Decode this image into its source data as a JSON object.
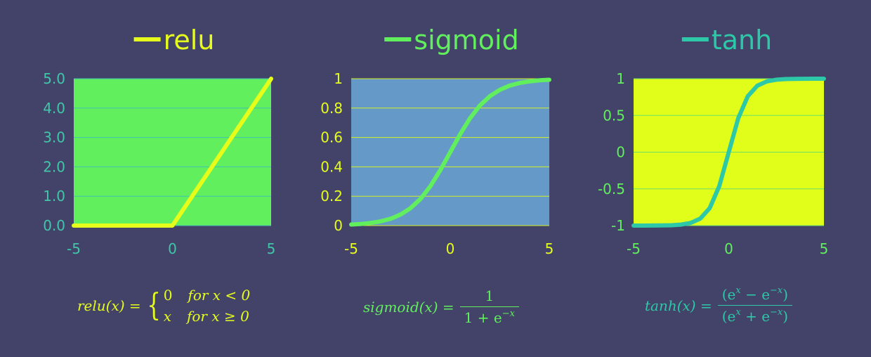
{
  "chart_data": [
    {
      "type": "line",
      "function": "relu",
      "legend": "relu",
      "legend_position": "top",
      "colors": {
        "line": "#e6fd1b",
        "plot_bg": "#61ef5e",
        "ticks": "#40c6a8",
        "grid": "#43c2ad",
        "title": "#e6fd1b"
      },
      "x": [
        -5,
        0,
        1,
        2,
        3,
        4,
        5
      ],
      "y": [
        0,
        0,
        1,
        2,
        3,
        4,
        5
      ],
      "xlim": [
        -5,
        5
      ],
      "ylim": [
        0,
        5
      ],
      "xticks": [
        "-5",
        "0",
        "5"
      ],
      "yticks": [
        "0.0",
        "1.0",
        "2.0",
        "3.0",
        "4.0",
        "5.0"
      ],
      "grid": true,
      "formula": {
        "lhs": "relu(x) = ",
        "case1": "0",
        "case1_cond": "for x < 0",
        "case2": "x",
        "case2_cond": "for x ≥ 0"
      }
    },
    {
      "type": "line",
      "function": "sigmoid",
      "legend": "sigmoid",
      "legend_position": "top",
      "colors": {
        "line": "#61ef5e",
        "plot_bg": "#6599c8",
        "ticks": "#e6fd1b",
        "grid": "#d4ef20",
        "title": "#61ef5e"
      },
      "x": [
        -5,
        -4.5,
        -4,
        -3.5,
        -3,
        -2.5,
        -2,
        -1.5,
        -1,
        -0.5,
        0,
        0.5,
        1,
        1.5,
        2,
        2.5,
        3,
        3.5,
        4,
        4.5,
        5
      ],
      "y": [
        0.007,
        0.011,
        0.018,
        0.029,
        0.047,
        0.076,
        0.119,
        0.182,
        0.269,
        0.378,
        0.5,
        0.622,
        0.731,
        0.818,
        0.881,
        0.924,
        0.953,
        0.971,
        0.982,
        0.989,
        0.993
      ],
      "xlim": [
        -5,
        5
      ],
      "ylim": [
        0,
        1
      ],
      "xticks": [
        "-5",
        "0",
        "5"
      ],
      "yticks": [
        "0",
        "0.2",
        "0.4",
        "0.6",
        "0.8",
        "1"
      ],
      "grid": true,
      "formula": {
        "lhs": "sigmoid(x) = ",
        "num": "1",
        "den": "1 + e",
        "den_sup": "−x"
      }
    },
    {
      "type": "line",
      "function": "tanh",
      "legend": "tanh",
      "legend_position": "top",
      "colors": {
        "line": "#2dc8a8",
        "plot_bg": "#e1fd1a",
        "ticks": "#61ef5e",
        "grid": "#6ee06a",
        "title": "#2dc8a8"
      },
      "x": [
        -5,
        -4.5,
        -4,
        -3.5,
        -3,
        -2.5,
        -2,
        -1.5,
        -1,
        -0.5,
        0,
        0.5,
        1,
        1.5,
        2,
        2.5,
        3,
        3.5,
        4,
        4.5,
        5
      ],
      "y": [
        -1.0,
        -1.0,
        -0.999,
        -0.998,
        -0.995,
        -0.987,
        -0.964,
        -0.905,
        -0.762,
        -0.462,
        0,
        0.462,
        0.762,
        0.905,
        0.964,
        0.987,
        0.995,
        0.998,
        0.999,
        1.0,
        1.0
      ],
      "xlim": [
        -5,
        5
      ],
      "ylim": [
        -1,
        1
      ],
      "xticks": [
        "-5",
        "0",
        "5"
      ],
      "yticks": [
        "-1",
        "-0.5",
        "0",
        "0.5",
        "1"
      ],
      "grid": true,
      "formula": {
        "lhs": "tanh(x) = ",
        "num_a": "(e",
        "num_sup1": "x",
        "num_b": " − e",
        "num_sup2": "−x",
        "num_c": ")",
        "den_a": "(e",
        "den_sup1": "x",
        "den_b": " + e",
        "den_sup2": "−x",
        "den_c": ")"
      }
    }
  ]
}
